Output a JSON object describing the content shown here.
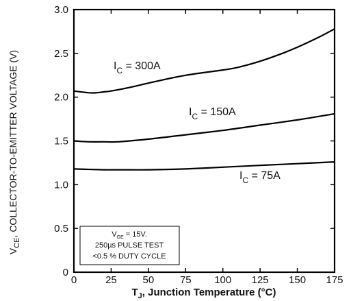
{
  "chart_data": {
    "type": "line",
    "xlabel": {
      "main": "T",
      "sub": "J",
      "rest": ", Junction Temperature (°C)"
    },
    "ylabel": {
      "main": "V",
      "sub": "CE",
      "rest": ", COLLECTOR-TO-EMITTER VOLTAGE (V)"
    },
    "xlim": [
      0,
      175
    ],
    "ylim": [
      0,
      3.0
    ],
    "x_ticks": [
      0,
      25,
      50,
      75,
      100,
      125,
      150,
      175
    ],
    "y_ticks": [
      "0",
      "0.5",
      "1.0",
      "1.5",
      "2.0",
      "2.5",
      "3.0"
    ],
    "grid": false,
    "series": [
      {
        "name": {
          "main": "I",
          "sub": "C",
          "rest": " = 300A"
        },
        "x": [
          0,
          10,
          15,
          20,
          25,
          40,
          50,
          75,
          100,
          110,
          125,
          140,
          150,
          165,
          175
        ],
        "y": [
          2.07,
          2.05,
          2.05,
          2.06,
          2.07,
          2.12,
          2.16,
          2.25,
          2.31,
          2.34,
          2.41,
          2.5,
          2.57,
          2.69,
          2.78
        ]
      },
      {
        "name": {
          "main": "I",
          "sub": "C",
          "rest": " = 150A"
        },
        "x": [
          0,
          10,
          20,
          30,
          50,
          75,
          100,
          125,
          150,
          175
        ],
        "y": [
          1.5,
          1.49,
          1.49,
          1.49,
          1.52,
          1.57,
          1.62,
          1.68,
          1.74,
          1.81
        ]
      },
      {
        "name": {
          "main": "I",
          "sub": "C",
          "rest": " = 75A"
        },
        "x": [
          0,
          20,
          30,
          50,
          75,
          100,
          125,
          150,
          175
        ],
        "y": [
          1.18,
          1.17,
          1.17,
          1.17,
          1.18,
          1.2,
          1.22,
          1.24,
          1.26
        ]
      }
    ],
    "annotation": {
      "line1_main": "V",
      "line1_sub": "GE",
      "line1_rest": " = 15V.",
      "line2": "250µs PULSE TEST",
      "line3": "<0.5 % DUTY CYCLE"
    }
  }
}
